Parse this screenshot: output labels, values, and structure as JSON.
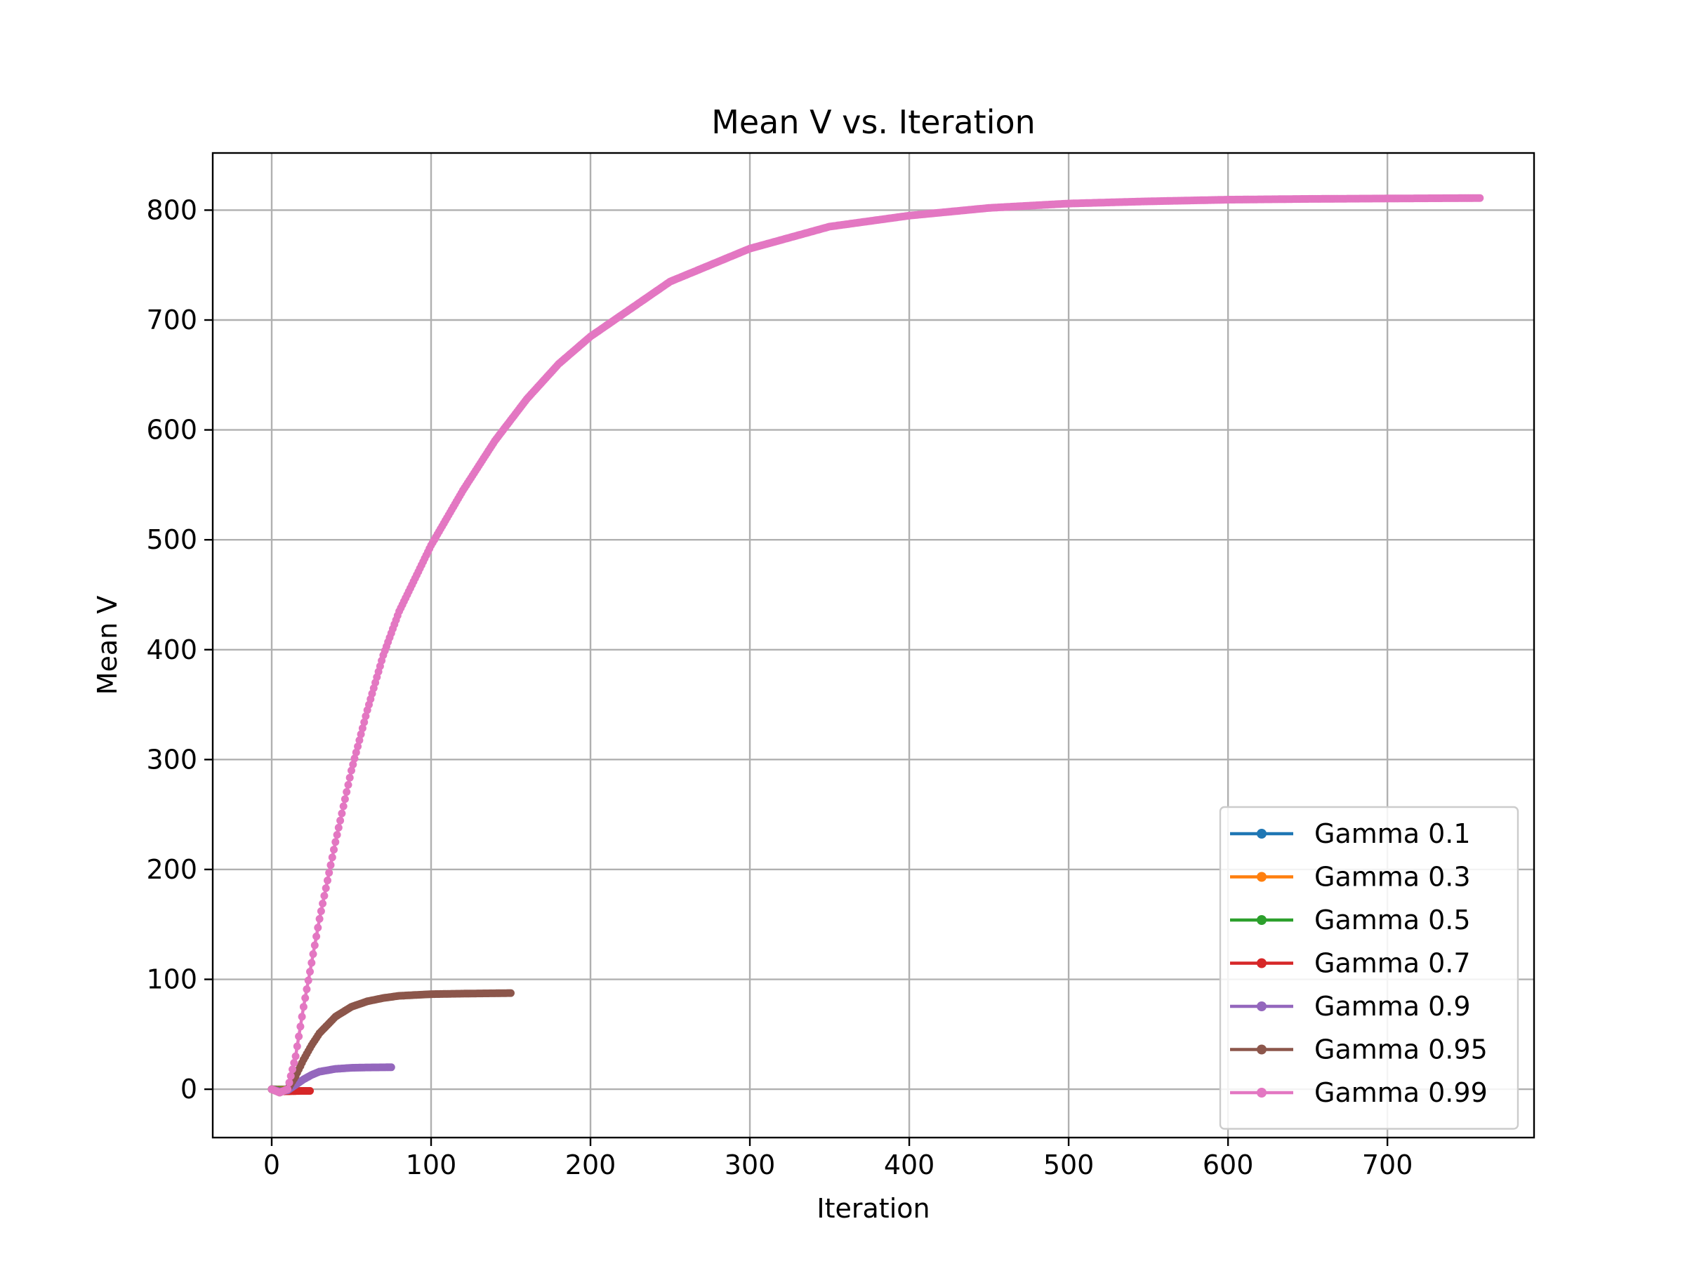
{
  "chart_data": {
    "type": "line",
    "title": "Mean V vs. Iteration",
    "xlabel": "Iteration",
    "ylabel": "Mean V",
    "xlim": [
      -37,
      792
    ],
    "ylim": [
      -44,
      852
    ],
    "xticks": [
      0,
      100,
      200,
      300,
      400,
      500,
      600,
      700
    ],
    "yticks": [
      0,
      100,
      200,
      300,
      400,
      500,
      600,
      700,
      800
    ],
    "grid": true,
    "legend_position": "lower-right",
    "series": [
      {
        "name": "Gamma 0.1",
        "color": "#1f77b4",
        "x": [
          0,
          2,
          4,
          6,
          8
        ],
        "y": [
          0,
          -0.1,
          -0.1,
          -0.1,
          -0.1
        ]
      },
      {
        "name": "Gamma 0.3",
        "color": "#ff7f0e",
        "x": [
          0,
          2,
          4,
          6,
          8,
          10
        ],
        "y": [
          0,
          -0.3,
          -0.4,
          -0.4,
          -0.4,
          -0.4
        ]
      },
      {
        "name": "Gamma 0.5",
        "color": "#2ca02c",
        "x": [
          0,
          3,
          6,
          9,
          12,
          14
        ],
        "y": [
          0,
          -0.8,
          -1.0,
          -1.0,
          -1.0,
          -1.0
        ]
      },
      {
        "name": "Gamma 0.7",
        "color": "#d62728",
        "x": [
          0,
          4,
          8,
          12,
          16,
          20,
          24
        ],
        "y": [
          0,
          -1.5,
          -1.9,
          -1.8,
          -1.6,
          -1.5,
          -1.5
        ]
      },
      {
        "name": "Gamma 0.9",
        "color": "#9467bd",
        "x": [
          0,
          5,
          10,
          15,
          20,
          25,
          30,
          40,
          50,
          60,
          75
        ],
        "y": [
          0,
          -2,
          -1,
          4,
          9,
          13,
          16,
          18.5,
          19.5,
          19.8,
          20
        ]
      },
      {
        "name": "Gamma 0.95",
        "color": "#8c564b",
        "x": [
          0,
          5,
          10,
          15,
          20,
          25,
          30,
          40,
          50,
          60,
          70,
          80,
          100,
          120,
          150
        ],
        "y": [
          0,
          -3,
          0,
          12,
          27,
          40,
          51,
          66,
          75,
          80,
          83,
          85,
          86.5,
          87,
          87.5
        ]
      },
      {
        "name": "Gamma 0.99",
        "color": "#e377c2",
        "x": [
          0,
          5,
          10,
          15,
          20,
          25,
          30,
          40,
          50,
          60,
          70,
          80,
          90,
          100,
          120,
          140,
          160,
          180,
          200,
          220,
          250,
          300,
          350,
          400,
          450,
          500,
          550,
          600,
          650,
          700,
          758
        ],
        "y": [
          0,
          -3,
          0,
          30,
          75,
          115,
          155,
          225,
          290,
          345,
          395,
          435,
          465,
          495,
          545,
          590,
          628,
          660,
          685,
          705,
          735,
          765,
          785,
          795,
          802,
          806,
          808,
          809.5,
          810.2,
          810.6,
          811
        ]
      }
    ]
  }
}
